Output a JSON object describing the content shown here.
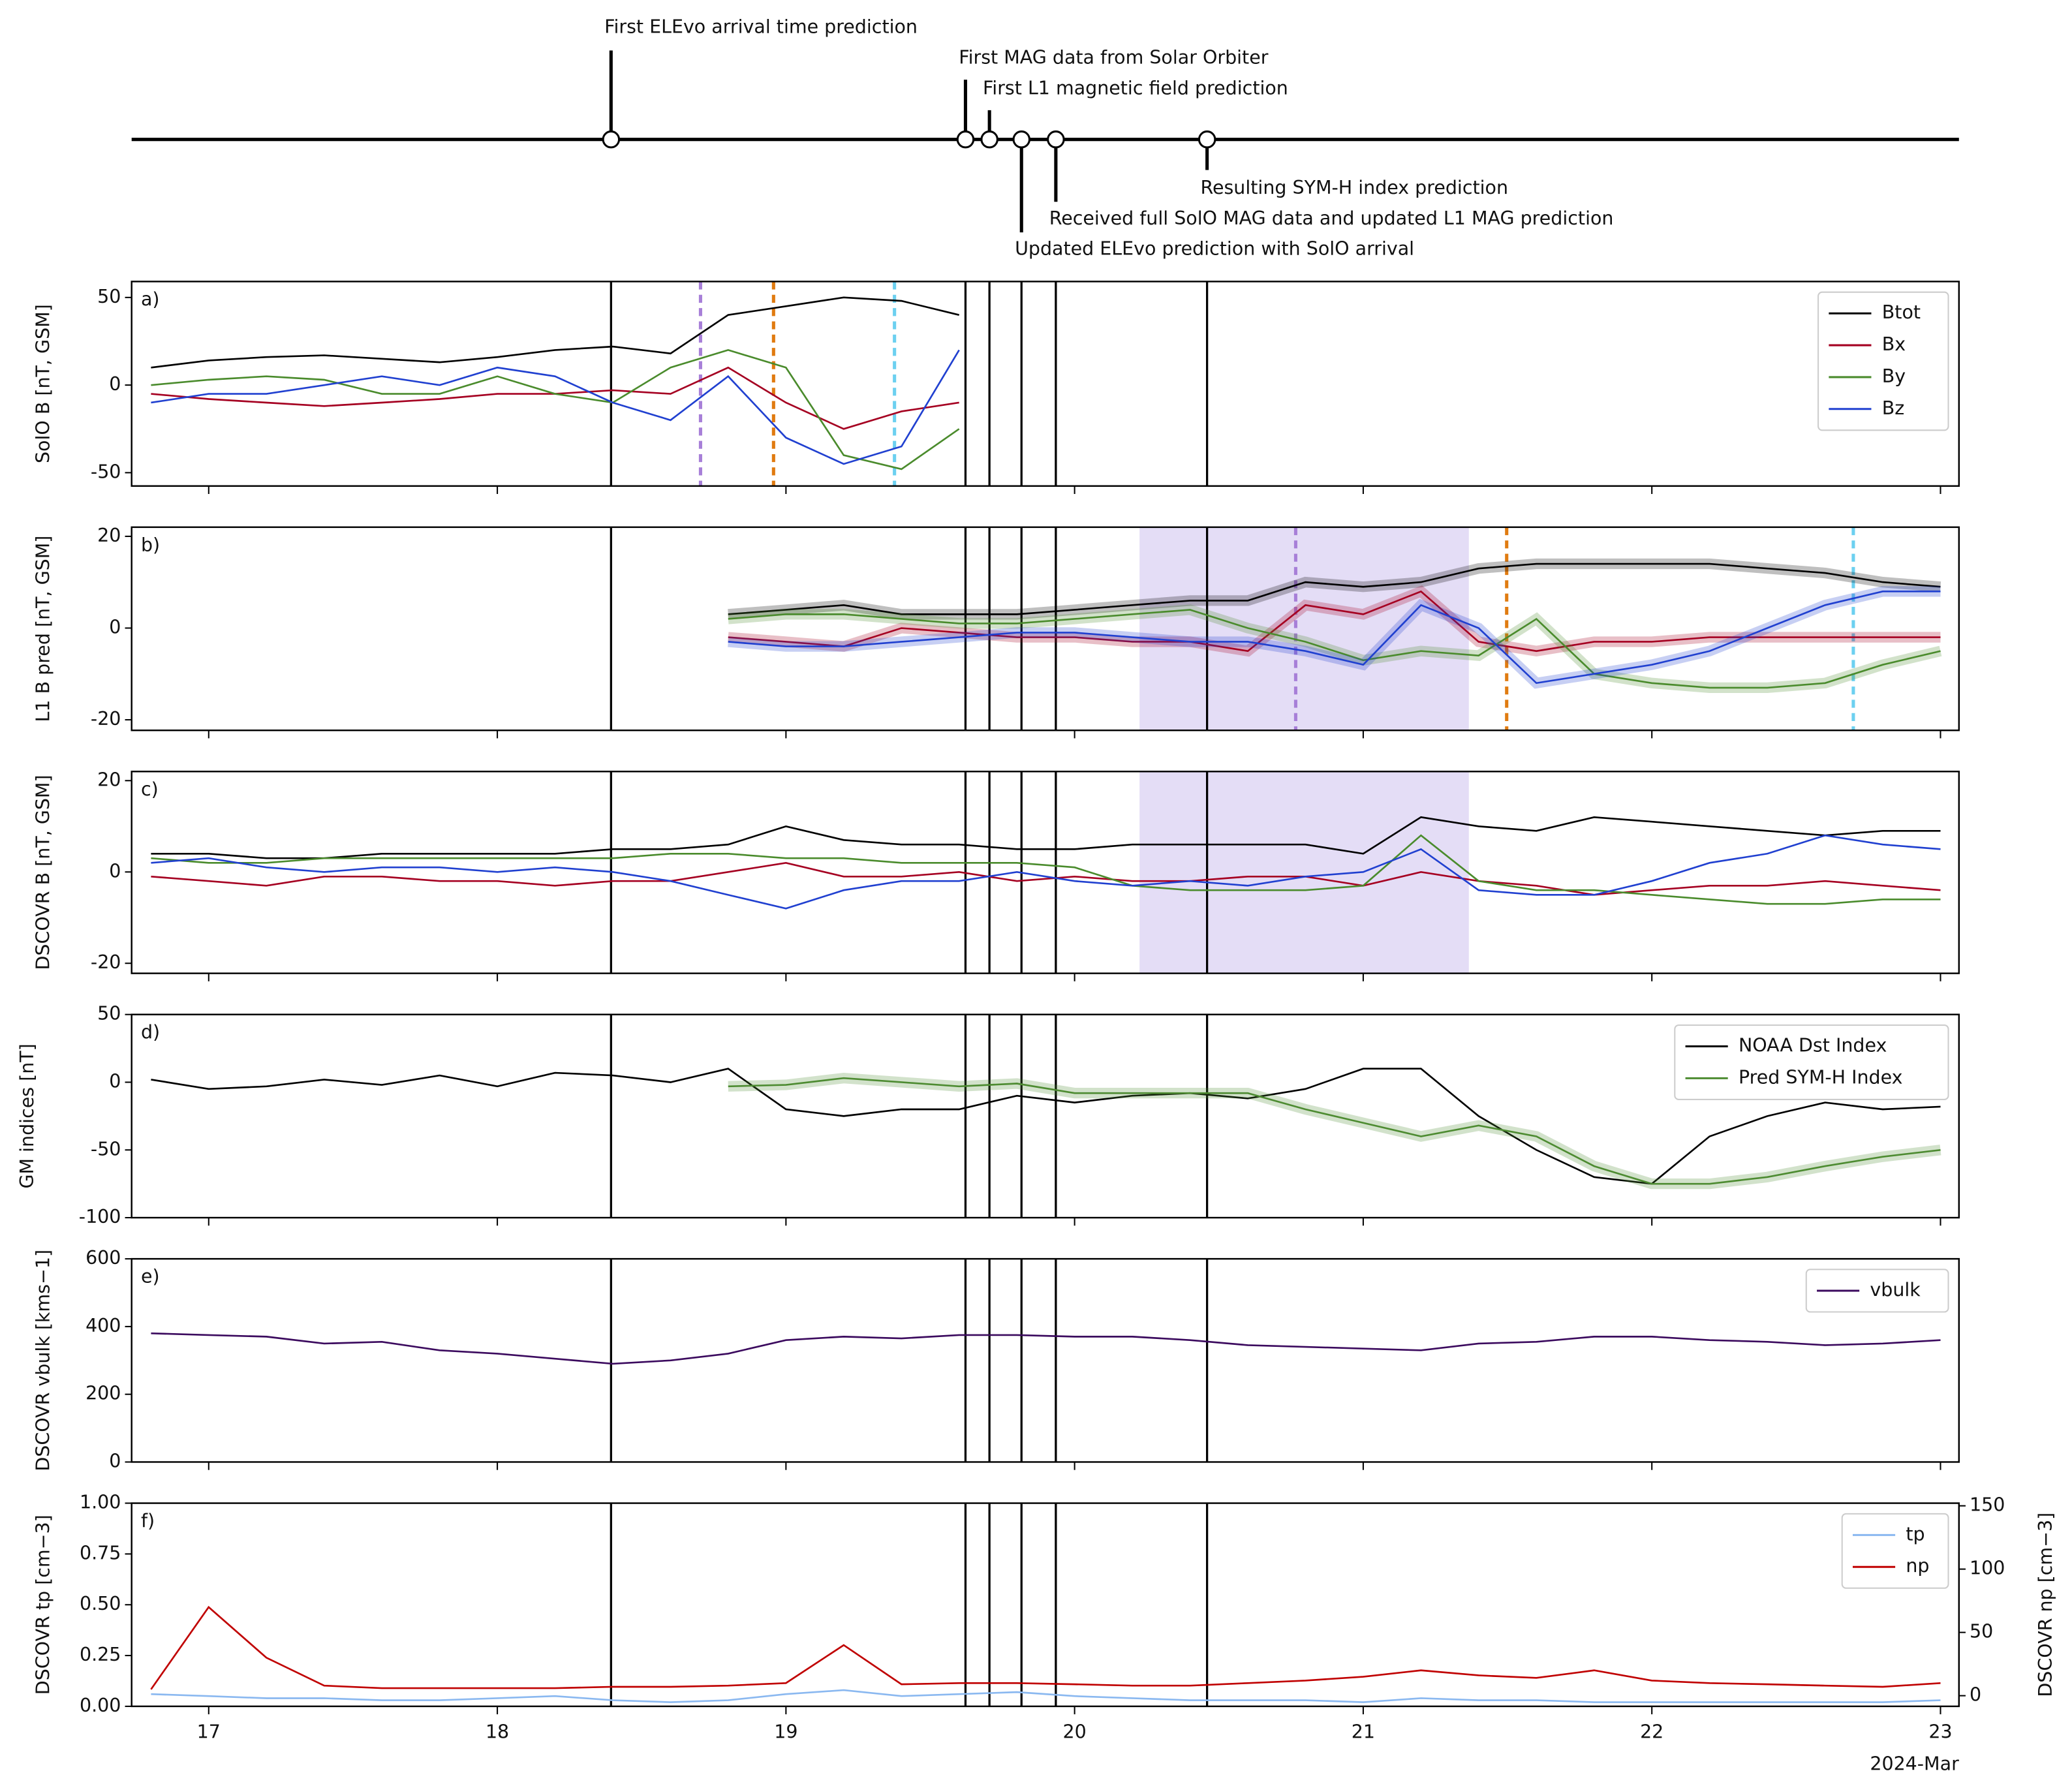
{
  "chart_data": [
    {
      "type": "timeline",
      "xlim": [
        16.733,
        23.064
      ],
      "x": [
        18.394,
        19.622,
        19.705,
        19.816,
        19.935,
        20.459
      ],
      "labels": [
        "First ELEvo arrival time prediction",
        "First MAG data from Solar Orbiter",
        "First L1 magnetic field prediction",
        "Updated ELEvo prediction with SolO arrival",
        "Received full SolO MAG data and updated L1 MAG prediction",
        "Resulting SYM-H index prediction"
      ]
    },
    {
      "type": "line",
      "panel_label": "a)",
      "ylabel": "SolO B [nT, GSM]",
      "xlim": [
        16.733,
        23.064
      ],
      "ylim": [
        -57.6,
        59.1
      ],
      "yticks": [
        -50,
        0,
        50
      ],
      "xticks": [
        17,
        18,
        19,
        20,
        21,
        22,
        23
      ],
      "xtick_labels": false,
      "legend": "upper right",
      "vlines": [
        {
          "x": 18.704,
          "color": "#a77fd8"
        },
        {
          "x": 18.957,
          "color": "#e07b10"
        },
        {
          "x": 19.376,
          "color": "#6cd0f0"
        }
      ],
      "x": [
        16.8,
        17.0,
        17.2,
        17.4,
        17.6,
        17.8,
        18.0,
        18.2,
        18.4,
        18.6,
        18.8,
        19.0,
        19.2,
        19.4,
        19.6,
        19.8,
        20.0,
        20.2,
        20.4,
        20.6,
        20.8,
        21.0,
        21.2,
        21.4,
        21.6,
        21.8,
        22.0,
        22.2,
        22.4,
        22.6,
        22.8,
        23.0
      ],
      "series": [
        {
          "name": "Btot",
          "color": "#000000",
          "values": [
            10,
            14,
            16,
            17,
            15,
            13,
            16,
            20,
            22,
            18,
            40,
            45,
            50,
            48,
            40,
            null,
            null,
            null,
            null,
            null,
            null,
            null,
            null,
            null,
            null,
            null,
            null,
            null,
            null,
            null,
            null,
            null
          ]
        },
        {
          "name": "Bx",
          "color": "#a50021",
          "values": [
            -5,
            -8,
            -10,
            -12,
            -10,
            -8,
            -5,
            -5,
            -3,
            -5,
            10,
            -10,
            -25,
            -15,
            -10,
            null,
            null,
            null,
            null,
            null,
            null,
            null,
            null,
            null,
            null,
            null,
            null,
            null,
            null,
            null,
            null,
            null
          ]
        },
        {
          "name": "By",
          "color": "#4a8b2c",
          "values": [
            0,
            3,
            5,
            3,
            -5,
            -5,
            5,
            -5,
            -10,
            10,
            20,
            10,
            -40,
            -48,
            -25,
            null,
            null,
            null,
            null,
            null,
            null,
            null,
            null,
            null,
            null,
            null,
            null,
            null,
            null,
            null,
            null,
            null
          ]
        },
        {
          "name": "Bz",
          "color": "#2040d0",
          "values": [
            -10,
            -5,
            -5,
            0,
            5,
            0,
            10,
            5,
            -10,
            -20,
            5,
            -30,
            -45,
            -35,
            20,
            null,
            null,
            null,
            null,
            null,
            null,
            null,
            null,
            null,
            null,
            null,
            null,
            null,
            null,
            null,
            null,
            null
          ]
        }
      ]
    },
    {
      "type": "line",
      "panel_label": "b)",
      "ylabel": "L1 B pred [nT, GSM]",
      "xlim": [
        16.733,
        23.064
      ],
      "ylim": [
        -22.3,
        22.0
      ],
      "yticks": [
        -20,
        0,
        20
      ],
      "xticks": [
        17,
        18,
        19,
        20,
        21,
        22,
        23
      ],
      "xtick_labels": false,
      "span": [
        20.225,
        21.366
      ],
      "span_color": "#e4ddf6",
      "vlines": [
        {
          "x": 20.766,
          "color": "#a77fd8"
        },
        {
          "x": 21.497,
          "color": "#e07b10"
        },
        {
          "x": 22.698,
          "color": "#6cd0f0"
        }
      ],
      "x": [
        16.8,
        17.0,
        17.2,
        17.4,
        17.6,
        17.8,
        18.0,
        18.2,
        18.4,
        18.6,
        18.8,
        19.0,
        19.2,
        19.4,
        19.6,
        19.8,
        20.0,
        20.2,
        20.4,
        20.6,
        20.8,
        21.0,
        21.2,
        21.4,
        21.6,
        21.8,
        22.0,
        22.2,
        22.4,
        22.6,
        22.8,
        23.0
      ],
      "series": [
        {
          "color": "#000000",
          "values": [
            null,
            null,
            null,
            null,
            null,
            null,
            null,
            null,
            null,
            null,
            3,
            4,
            5,
            3,
            3,
            3,
            4,
            5,
            6,
            6,
            10,
            9,
            10,
            13,
            14,
            14,
            14,
            14,
            13,
            12,
            10,
            9
          ]
        },
        {
          "color": "#a50021",
          "values": [
            null,
            null,
            null,
            null,
            null,
            null,
            null,
            null,
            null,
            null,
            -2,
            -3,
            -4,
            0,
            -1,
            -2,
            -2,
            -3,
            -3,
            -5,
            5,
            3,
            8,
            -3,
            -5,
            -3,
            -3,
            -2,
            -2,
            -2,
            -2,
            -2
          ]
        },
        {
          "color": "#4a8b2c",
          "values": [
            null,
            null,
            null,
            null,
            null,
            null,
            null,
            null,
            null,
            null,
            2,
            3,
            3,
            2,
            1,
            1,
            2,
            3,
            4,
            0,
            -3,
            -7,
            -5,
            -6,
            2,
            -10,
            -12,
            -13,
            -13,
            -12,
            -8,
            -5
          ]
        },
        {
          "color": "#2040d0",
          "values": [
            null,
            null,
            null,
            null,
            null,
            null,
            null,
            null,
            null,
            null,
            -3,
            -4,
            -4,
            -3,
            -2,
            -1,
            -1,
            -2,
            -3,
            -3,
            -5,
            -8,
            5,
            0,
            -12,
            -10,
            -8,
            -5,
            0,
            5,
            8,
            8
          ]
        }
      ]
    },
    {
      "type": "line",
      "panel_label": "c)",
      "ylabel": "DSCOVR B [nT, GSM]",
      "xlim": [
        16.733,
        23.064
      ],
      "ylim": [
        -22.2,
        22.0
      ],
      "yticks": [
        -20,
        0,
        20
      ],
      "xticks": [
        17,
        18,
        19,
        20,
        21,
        22,
        23
      ],
      "xtick_labels": false,
      "span": [
        20.225,
        21.366
      ],
      "span_color": "#e4ddf6",
      "x": [
        16.8,
        17.0,
        17.2,
        17.4,
        17.6,
        17.8,
        18.0,
        18.2,
        18.4,
        18.6,
        18.8,
        19.0,
        19.2,
        19.4,
        19.6,
        19.8,
        20.0,
        20.2,
        20.4,
        20.6,
        20.8,
        21.0,
        21.2,
        21.4,
        21.6,
        21.8,
        22.0,
        22.2,
        22.4,
        22.6,
        22.8,
        23.0
      ],
      "series": [
        {
          "color": "#000000",
          "values": [
            4,
            4,
            3,
            3,
            4,
            4,
            4,
            4,
            5,
            5,
            6,
            10,
            7,
            6,
            6,
            5,
            5,
            6,
            6,
            6,
            6,
            4,
            12,
            10,
            9,
            12,
            11,
            10,
            9,
            8,
            9,
            9
          ]
        },
        {
          "color": "#a50021",
          "values": [
            -1,
            -2,
            -3,
            -1,
            -1,
            -2,
            -2,
            -3,
            -2,
            -2,
            0,
            2,
            -1,
            -1,
            0,
            -2,
            -1,
            -2,
            -2,
            -1,
            -1,
            -3,
            0,
            -2,
            -3,
            -5,
            -4,
            -3,
            -3,
            -2,
            -3,
            -4
          ]
        },
        {
          "color": "#4a8b2c",
          "values": [
            3,
            2,
            2,
            3,
            3,
            3,
            3,
            3,
            3,
            4,
            4,
            3,
            3,
            2,
            2,
            2,
            1,
            -3,
            -4,
            -4,
            -4,
            -3,
            8,
            -2,
            -4,
            -4,
            -5,
            -6,
            -7,
            -7,
            -6,
            -6
          ]
        },
        {
          "color": "#2040d0",
          "values": [
            2,
            3,
            1,
            0,
            1,
            1,
            0,
            1,
            0,
            -2,
            -5,
            -8,
            -4,
            -2,
            -2,
            0,
            -2,
            -3,
            -2,
            -3,
            -1,
            0,
            5,
            -4,
            -5,
            -5,
            -2,
            2,
            4,
            8,
            6,
            5
          ]
        }
      ]
    },
    {
      "type": "line",
      "panel_label": "d)",
      "ylabel": "GM indices [nT]",
      "xlim": [
        16.733,
        23.064
      ],
      "ylim": [
        -100,
        50
      ],
      "yticks": [
        -100,
        -50,
        0,
        50
      ],
      "xticks": [
        17,
        18,
        19,
        20,
        21,
        22,
        23
      ],
      "xtick_labels": false,
      "legend": "upper right",
      "x": [
        16.8,
        17.0,
        17.2,
        17.4,
        17.6,
        17.8,
        18.0,
        18.2,
        18.4,
        18.6,
        18.8,
        19.0,
        19.2,
        19.4,
        19.6,
        19.8,
        20.0,
        20.2,
        20.4,
        20.6,
        20.8,
        21.0,
        21.2,
        21.4,
        21.6,
        21.8,
        22.0,
        22.2,
        22.4,
        22.6,
        22.8,
        23.0
      ],
      "series": [
        {
          "name": "NOAA Dst Index",
          "color": "#000000",
          "values": [
            2,
            -5,
            -3,
            2,
            -2,
            5,
            -3,
            7,
            5,
            0,
            10,
            -20,
            -25,
            -20,
            -20,
            -10,
            -15,
            -10,
            -8,
            -12,
            -5,
            10,
            10,
            -25,
            -50,
            -70,
            -75,
            -40,
            -25,
            -15,
            -20,
            -18
          ]
        },
        {
          "name": "Pred SYM-H Index",
          "color": "#4d8b31",
          "values": [
            null,
            null,
            null,
            null,
            null,
            null,
            null,
            null,
            null,
            null,
            -3,
            -2,
            3,
            0,
            -3,
            -1,
            -8,
            -8,
            -8,
            -8,
            -20,
            -30,
            -40,
            -32,
            -40,
            -62,
            -75,
            -75,
            -70,
            -62,
            -55,
            -50
          ]
        }
      ]
    },
    {
      "type": "line",
      "panel_label": "e)",
      "ylabel": "DSCOVR vbulk [kms−1]",
      "xlim": [
        16.733,
        23.064
      ],
      "ylim": [
        0,
        600
      ],
      "yticks": [
        0,
        200,
        400,
        600
      ],
      "xticks": [
        17,
        18,
        19,
        20,
        21,
        22,
        23
      ],
      "xtick_labels": false,
      "legend": "upper right",
      "x": [
        16.8,
        17.0,
        17.2,
        17.4,
        17.6,
        17.8,
        18.0,
        18.2,
        18.4,
        18.6,
        18.8,
        19.0,
        19.2,
        19.4,
        19.6,
        19.8,
        20.0,
        20.2,
        20.4,
        20.6,
        20.8,
        21.0,
        21.2,
        21.4,
        21.6,
        21.8,
        22.0,
        22.2,
        22.4,
        22.6,
        22.8,
        23.0
      ],
      "series": [
        {
          "name": "vbulk",
          "color": "#3b0a5e",
          "values": [
            380,
            375,
            370,
            350,
            355,
            330,
            320,
            305,
            290,
            300,
            320,
            360,
            370,
            365,
            375,
            375,
            370,
            370,
            360,
            345,
            340,
            335,
            330,
            350,
            355,
            370,
            370,
            360,
            355,
            345,
            350,
            360
          ]
        }
      ]
    },
    {
      "type": "line",
      "panel_label": "f)",
      "ylabel": "DSCOVR tp [cm−3]",
      "y2label": "DSCOVR np [cm−3]",
      "xlim": [
        16.733,
        23.064
      ],
      "ylim": [
        0,
        1
      ],
      "yticks": [
        {
          "value": 0,
          "label": "0.00"
        },
        {
          "value": 0.25,
          "label": "0.25"
        },
        {
          "value": 0.5,
          "label": "0.50"
        },
        {
          "value": 0.75,
          "label": "0.75"
        },
        {
          "value": 1,
          "label": "1.00"
        }
      ],
      "y2lim": [
        -8.4,
        152.1
      ],
      "y2ticks": [
        0,
        50,
        100,
        150
      ],
      "xticks": [
        17,
        18,
        19,
        20,
        21,
        22,
        23
      ],
      "xlabel": "2024-Mar",
      "legend": "upper right",
      "x": [
        16.8,
        17.0,
        17.2,
        17.4,
        17.6,
        17.8,
        18.0,
        18.2,
        18.4,
        18.6,
        18.8,
        19.0,
        19.2,
        19.4,
        19.6,
        19.8,
        20.0,
        20.2,
        20.4,
        20.6,
        20.8,
        21.0,
        21.2,
        21.4,
        21.6,
        21.8,
        22.0,
        22.2,
        22.4,
        22.6,
        22.8,
        23.0
      ],
      "series": [
        {
          "name": "tp",
          "color": "#8ab8f0",
          "values": [
            0.06,
            0.05,
            0.04,
            0.04,
            0.03,
            0.03,
            0.04,
            0.05,
            0.03,
            0.02,
            0.03,
            0.06,
            0.08,
            0.05,
            0.06,
            0.07,
            0.05,
            0.04,
            0.03,
            0.03,
            0.03,
            0.02,
            0.04,
            0.03,
            0.03,
            0.02,
            0.02,
            0.02,
            0.02,
            0.02,
            0.02,
            0.03
          ]
        },
        {
          "name": "np",
          "color": "#c00000",
          "axis": "y2",
          "values": [
            5,
            70,
            30,
            8,
            6,
            6,
            6,
            6,
            7,
            7,
            8,
            10,
            40,
            9,
            10,
            10,
            9,
            8,
            8,
            10,
            12,
            15,
            20,
            16,
            14,
            20,
            12,
            10,
            9,
            8,
            7,
            10
          ]
        }
      ]
    }
  ]
}
